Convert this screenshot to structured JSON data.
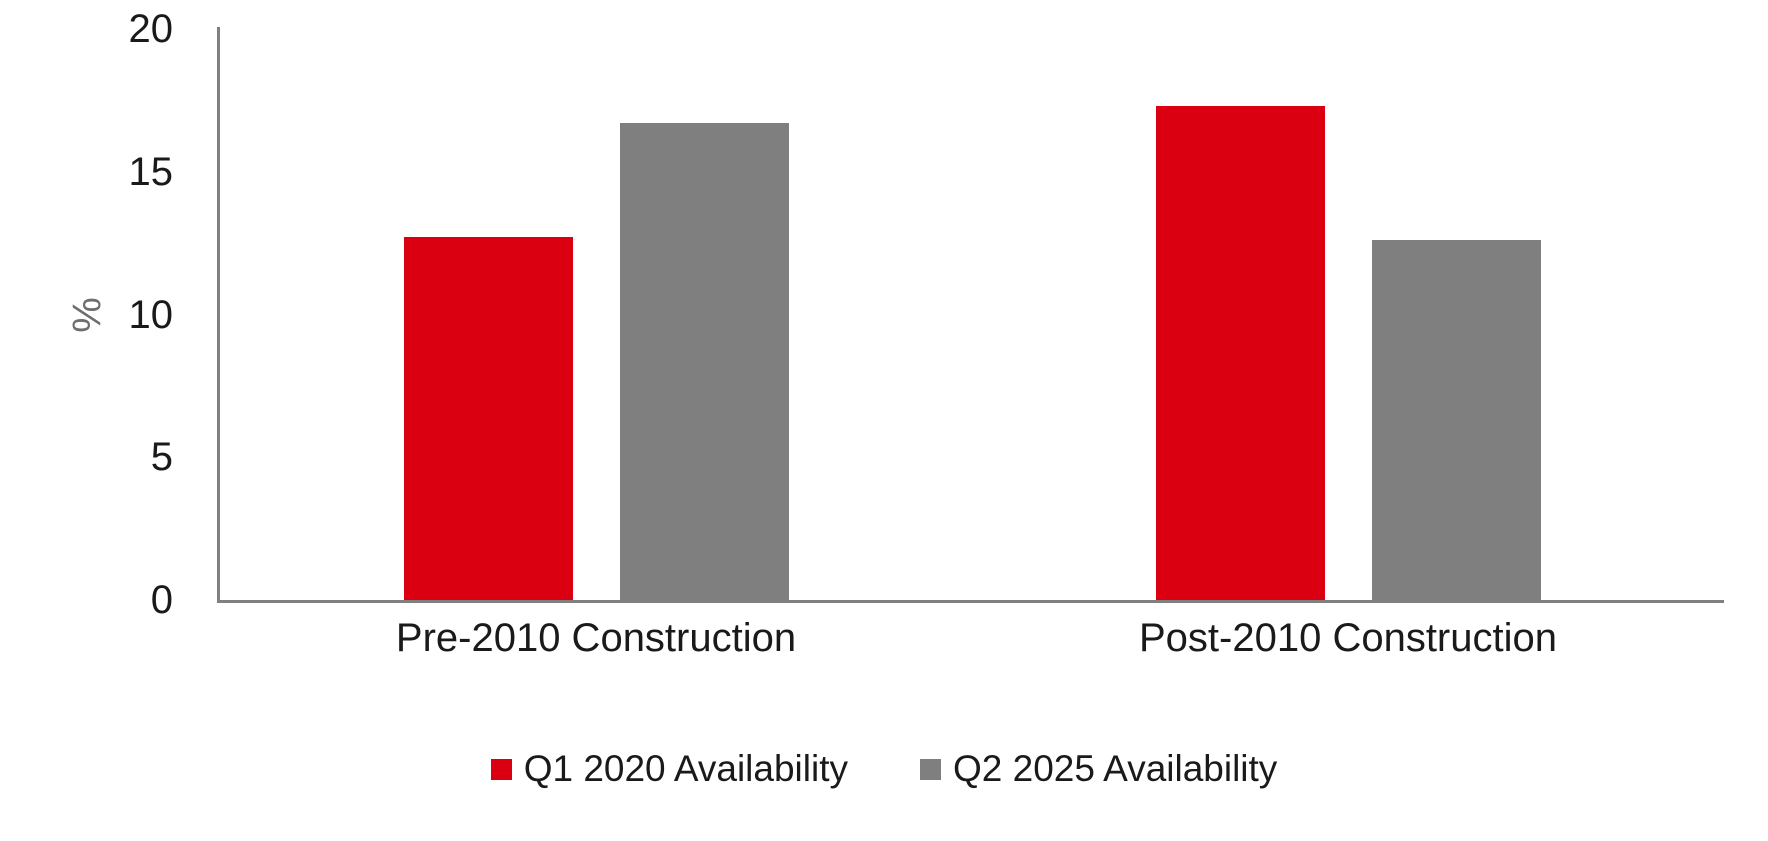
{
  "chart_data": {
    "type": "bar",
    "title": "",
    "xlabel": "",
    "ylabel": "%",
    "ylim": [
      0,
      20
    ],
    "yticks": [
      0,
      5,
      10,
      15,
      20
    ],
    "grid": false,
    "legend_position": "bottom",
    "categories": [
      "Pre-2010 Construction",
      "Post-2010 Construction"
    ],
    "series": [
      {
        "name": "Q1 2020 Availability",
        "color": "#db0011",
        "values": [
          12.7,
          17.3
        ]
      },
      {
        "name": "Q2 2025 Availability",
        "color": "#7f7f7f",
        "values": [
          16.7,
          12.6
        ]
      }
    ]
  },
  "colors": {
    "axis_line": "#808080",
    "tick_text": "#1a1a1a",
    "axis_title_text": "#6e6e6e",
    "background": "#ffffff"
  }
}
